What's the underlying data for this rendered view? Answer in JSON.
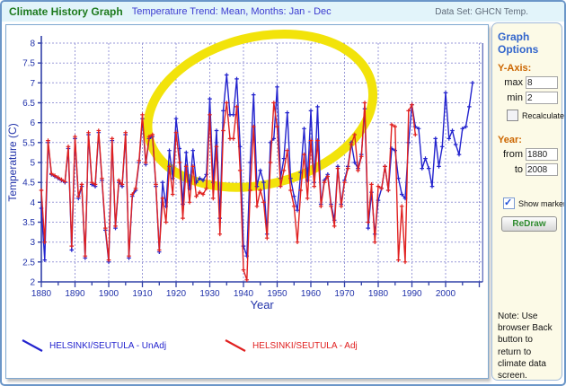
{
  "header": {
    "title": "Climate History Graph",
    "subtitle": "Temperature Trend: Mean, Months: Jan - Dec",
    "dataset": "Data Set: GHCN Temp."
  },
  "sidebar": {
    "title": "Graph Options",
    "y_axis": {
      "label": "Y-Axis:",
      "max_label": "max",
      "max_value": "8",
      "min_label": "min",
      "min_value": "2",
      "recalculate_label": "Recalculate",
      "recalculate_checked": false
    },
    "year": {
      "label": "Year:",
      "from_label": "from",
      "from_value": "1880",
      "to_label": "to",
      "to_value": "2008"
    },
    "show_markers": {
      "label": "Show markers",
      "checked": true
    },
    "redraw_label": "ReDraw",
    "note": "Note: Use browser Back button to return to climate data screen."
  },
  "legend": [
    {
      "label": "HELSINKI/SEUTULA - UnAdj",
      "color": "#2323CE"
    },
    {
      "label": "HELSINKI/SEUTULA - Adj",
      "color": "#E02020"
    }
  ],
  "chart_data": {
    "type": "line",
    "title": "",
    "xlabel": "Year",
    "ylabel": "Temperature (C)",
    "xlim": [
      1880,
      2011
    ],
    "ylim": [
      2,
      8
    ],
    "ytick_step": 0.5,
    "x_tick_minor_step": 5,
    "x_tick_label_step": 10,
    "x_label_min": 1880,
    "x_label_max": 2000,
    "grid": true,
    "legend_position": "bottom",
    "annotation": {
      "shape": "hand-drawn-ellipse-highlight",
      "cx_year": 1945,
      "cy_value": 6.3,
      "rx_years": 34,
      "ry_values": 1.85,
      "rotate_deg": -14,
      "color": "#F2E30A",
      "stroke_width": 10
    },
    "series": [
      {
        "name": "HELSINKI/SEUTULA - UnAdj",
        "color": "#2323CE",
        "marker": "plus",
        "start_year": 1880,
        "values": [
          3.85,
          2.55,
          5.5,
          4.7,
          4.65,
          4.6,
          4.55,
          4.5,
          5.35,
          2.8,
          5.6,
          4.1,
          4.4,
          2.6,
          5.7,
          4.45,
          4.4,
          5.75,
          4.55,
          3.3,
          2.5,
          5.55,
          3.35,
          4.5,
          4.4,
          5.7,
          2.6,
          4.15,
          4.3,
          5.0,
          6.1,
          4.95,
          5.6,
          5.65,
          4.4,
          2.75,
          4.5,
          3.9,
          5.3,
          4.6,
          6.1,
          5.35,
          3.95,
          5.25,
          4.35,
          5.3,
          4.5,
          4.6,
          4.55,
          4.7,
          6.6,
          4.5,
          5.8,
          3.6,
          6.3,
          7.2,
          6.2,
          6.2,
          7.1,
          5.4,
          2.9,
          2.65,
          5.0,
          6.7,
          4.4,
          4.8,
          4.5,
          3.2,
          5.5,
          5.6,
          6.9,
          4.6,
          5.1,
          6.25,
          4.6,
          4.15,
          3.8,
          4.75,
          5.85,
          4.55,
          6.3,
          4.5,
          6.4,
          3.95,
          4.55,
          4.7,
          3.95,
          3.55,
          4.9,
          3.95,
          4.55,
          4.9,
          5.5,
          5.0,
          4.85,
          5.2,
          6.35,
          3.35,
          4.25,
          3.2,
          4.05,
          4.35,
          4.9,
          4.3,
          5.35,
          5.3,
          4.6,
          4.2,
          4.1,
          5.5,
          6.45,
          5.9,
          5.85,
          4.85,
          5.1,
          4.85,
          4.4,
          5.6,
          4.9,
          5.4,
          6.75,
          5.6,
          5.8,
          5.45,
          5.2,
          5.85,
          5.9,
          6.4,
          7.0
        ]
      },
      {
        "name": "HELSINKI/SEUTULA - Adj",
        "color": "#E02020",
        "marker": "plus",
        "start_year": 1880,
        "values": [
          4.3,
          3.0,
          5.55,
          4.72,
          4.67,
          4.62,
          4.57,
          4.52,
          5.4,
          2.9,
          5.65,
          4.15,
          4.45,
          2.65,
          5.75,
          4.5,
          4.45,
          5.8,
          4.6,
          3.35,
          2.55,
          5.6,
          3.4,
          4.55,
          4.45,
          5.75,
          2.65,
          4.2,
          4.35,
          5.05,
          6.2,
          5.0,
          5.65,
          5.7,
          4.45,
          2.8,
          4.1,
          3.5,
          4.9,
          4.2,
          5.75,
          5.0,
          3.6,
          4.9,
          4.0,
          4.9,
          4.15,
          4.25,
          4.2,
          4.35,
          6.2,
          4.1,
          5.4,
          3.2,
          5.8,
          6.5,
          5.6,
          5.6,
          6.4,
          4.8,
          2.3,
          2.05,
          4.3,
          5.9,
          3.9,
          4.3,
          4.0,
          3.1,
          5.0,
          6.5,
          5.9,
          4.4,
          4.8,
          5.3,
          4.3,
          3.9,
          3.0,
          4.3,
          5.2,
          4.1,
          5.55,
          4.4,
          5.55,
          3.9,
          4.5,
          4.65,
          3.9,
          3.4,
          4.85,
          3.9,
          4.5,
          4.85,
          5.45,
          5.7,
          4.8,
          5.15,
          6.5,
          3.5,
          4.45,
          3.0,
          4.4,
          4.35,
          4.9,
          4.3,
          5.95,
          5.9,
          2.55,
          3.9,
          2.5,
          6.3,
          6.45,
          5.7
        ]
      }
    ]
  }
}
